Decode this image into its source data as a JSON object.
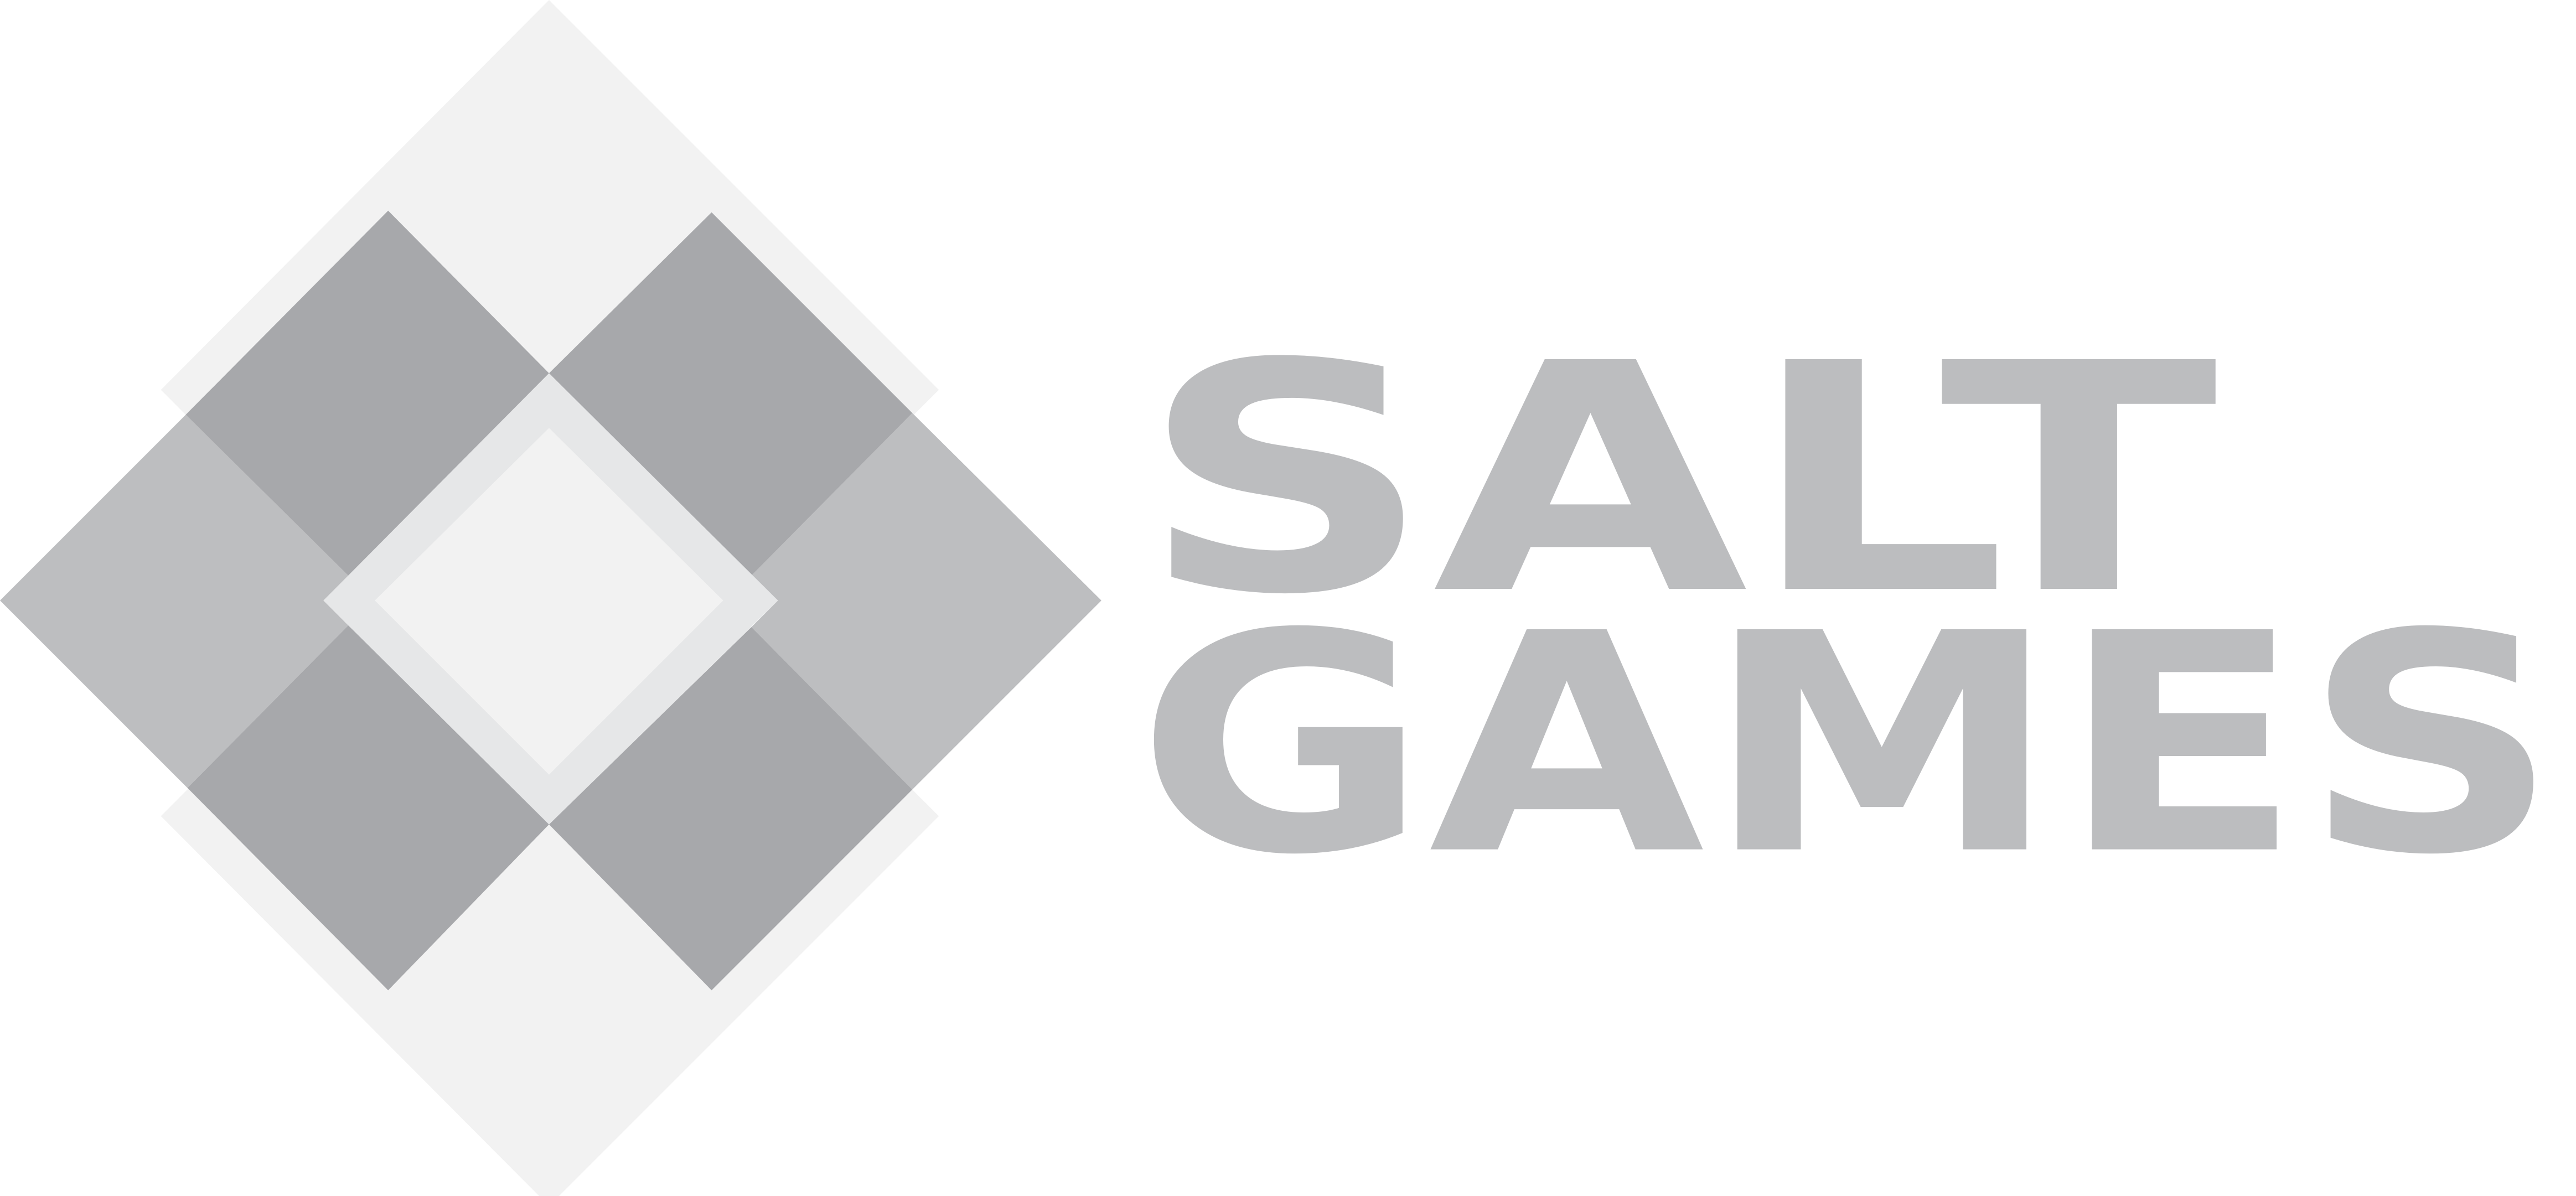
{
  "logo": {
    "line1": "SALT",
    "line2": "GAMES"
  }
}
